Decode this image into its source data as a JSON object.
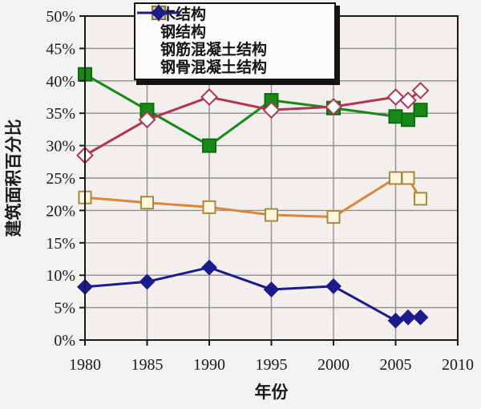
{
  "figure": {
    "background": "#f5f3f1",
    "plot_background": "#f2efed",
    "grid_color": "#8f8f8f",
    "axis_color": "#1a1a1a"
  },
  "chart_data": {
    "type": "line",
    "title": "",
    "xlabel": "年份",
    "ylabel": "建筑面积百分比",
    "xlim": [
      1980,
      2010
    ],
    "ylim": [
      0,
      50
    ],
    "x_ticks": [
      1980,
      1985,
      1990,
      1995,
      2000,
      2005,
      2010
    ],
    "y_ticks": [
      0,
      5,
      10,
      15,
      20,
      25,
      30,
      35,
      40,
      45,
      50
    ],
    "y_tick_suffix": "%",
    "grid": true,
    "legend_position": "top-center",
    "x": [
      1980,
      1985,
      1990,
      1995,
      2000,
      2005,
      2006,
      2007
    ],
    "series": [
      {
        "name": "木结构",
        "color": "#168a16",
        "marker": "square-filled",
        "marker_fill": "#168a16",
        "marker_stroke": "#0f6b0f",
        "values": [
          41,
          35.5,
          30,
          37,
          35.8,
          34.5,
          34,
          35.5
        ]
      },
      {
        "name": "钢结构",
        "color": "#b53350",
        "marker": "diamond-open",
        "marker_fill": "#ffffff",
        "marker_stroke": "#b53350",
        "values": [
          28.5,
          34,
          37.5,
          35.5,
          36,
          37.5,
          37,
          38.5
        ]
      },
      {
        "name": "钢筋混凝土结构",
        "color": "#dd8436",
        "marker": "square-open",
        "marker_fill": "#fdf6dd",
        "marker_stroke": "#a8893e",
        "values": [
          22,
          21.2,
          20.5,
          19.3,
          19,
          25,
          25,
          21.8
        ]
      },
      {
        "name": "钢骨混凝土结构",
        "color": "#1b1b8e",
        "marker": "diamond-filled",
        "marker_fill": "#1b1b8e",
        "marker_stroke": "#1b1b8e",
        "values": [
          8.2,
          9,
          11.2,
          7.8,
          8.3,
          3,
          3.5,
          3.5
        ]
      }
    ]
  }
}
